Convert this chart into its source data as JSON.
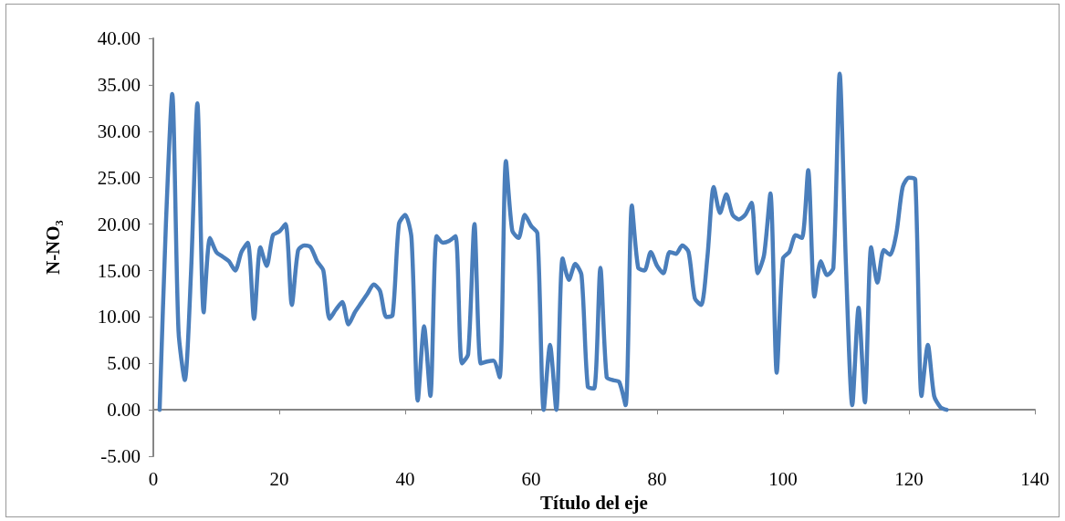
{
  "chart_data": {
    "type": "line",
    "xlabel": "Título del eje",
    "ylabel": "N-NO₃",
    "x": [
      1,
      2,
      3,
      4,
      5,
      6,
      7,
      8,
      9,
      10,
      11,
      12,
      13,
      14,
      15,
      16,
      17,
      18,
      19,
      20,
      21,
      22,
      23,
      24,
      25,
      26,
      27,
      28,
      29,
      30,
      31,
      32,
      33,
      34,
      35,
      36,
      37,
      38,
      39,
      40,
      41,
      42,
      43,
      44,
      45,
      46,
      47,
      48,
      49,
      50,
      51,
      52,
      53,
      54,
      55,
      56,
      57,
      58,
      59,
      60,
      61,
      62,
      63,
      64,
      65,
      66,
      67,
      68,
      69,
      70,
      71,
      72,
      73,
      74,
      75,
      76,
      77,
      78,
      79,
      80,
      81,
      82,
      83,
      84,
      85,
      86,
      87,
      88,
      89,
      90,
      91,
      92,
      93,
      94,
      95,
      96,
      97,
      98,
      99,
      100,
      101,
      102,
      103,
      104,
      105,
      106,
      107,
      108,
      109,
      110,
      111,
      112,
      113,
      114,
      115,
      116,
      117,
      118,
      119,
      120,
      121,
      122,
      123,
      124,
      125,
      126
    ],
    "series": [
      {
        "color": "#4a7ebb",
        "values": [
          0,
          20,
          34,
          8.5,
          3.2,
          15,
          33,
          10.5,
          18.5,
          17,
          16.5,
          16,
          15,
          17,
          18,
          9.8,
          17.5,
          15.5,
          18.8,
          19.2,
          20,
          11.3,
          17.2,
          17.7,
          17.5,
          16,
          15,
          9.8,
          10.8,
          11.6,
          9.2,
          10.5,
          11.5,
          12.5,
          13.5,
          12.8,
          10,
          10.2,
          20,
          21,
          18.5,
          1,
          9,
          1.5,
          18.7,
          18,
          18.2,
          18.7,
          5,
          6,
          20,
          5,
          5.2,
          5.3,
          3.5,
          26.8,
          19.3,
          18.5,
          21,
          19.8,
          19,
          0,
          7,
          0,
          16.3,
          14,
          15.7,
          14.5,
          2.5,
          2.3,
          15.3,
          3.5,
          3.2,
          3,
          0.5,
          22,
          15.3,
          15,
          17,
          15.5,
          14.7,
          17,
          16.8,
          17.7,
          17,
          12,
          11.3,
          16.5,
          24,
          21.2,
          23.2,
          21,
          20.5,
          21,
          22.3,
          14.7,
          16.7,
          23.3,
          4,
          16.3,
          17,
          18.8,
          18.5,
          25.8,
          12.2,
          16,
          14.5,
          15.3,
          36.2,
          15.5,
          0.5,
          11,
          0.8,
          17.5,
          13.7,
          17.2,
          16.7,
          19,
          24,
          25,
          24.8,
          1.5,
          7,
          1.5,
          0.3,
          0
        ]
      }
    ],
    "xlim": [
      0,
      140
    ],
    "xticks": [
      0,
      20,
      40,
      60,
      80,
      100,
      120,
      140
    ],
    "ylim": [
      -5,
      40
    ],
    "yticks": [
      {
        "value": -5,
        "label": "-5.00"
      },
      {
        "value": 0,
        "label": "0.00"
      },
      {
        "value": 5,
        "label": "5.00"
      },
      {
        "value": 10,
        "label": "10.00"
      },
      {
        "value": 15,
        "label": "15.00"
      },
      {
        "value": 20,
        "label": "20.00"
      },
      {
        "value": 25,
        "label": "25.00"
      },
      {
        "value": 30,
        "label": "30.00"
      },
      {
        "value": 35,
        "label": "35.00"
      },
      {
        "value": 40,
        "label": "40.00"
      }
    ],
    "marker": "none",
    "line_style": "solid"
  }
}
